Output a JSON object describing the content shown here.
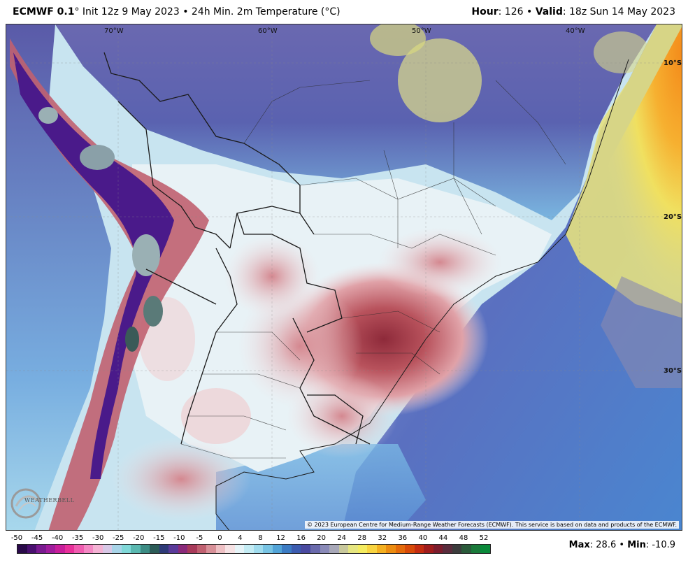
{
  "header": {
    "model": "ECMWF 0.1",
    "degree_mark": "°",
    "init": "Init 12z 9 May 2023",
    "sep": "•",
    "product": "24h Min. 2m Temperature (°C)",
    "hour_label": "Hour",
    "hour_value": ": 126",
    "valid_label": "Valid",
    "valid_value": ": 18z Sun 14 May 2023"
  },
  "map": {
    "lon_labels": [
      "70°W",
      "60°W",
      "50°W",
      "40°W"
    ],
    "lat_labels": [
      "10°S",
      "20°S",
      "30°S"
    ],
    "attribution": "© 2023 European Centre for Medium-Range Weather Forecasts (ECMWF). This service is based on data and products of the ECMWF.",
    "logo_text": "WEATHERBELL"
  },
  "colorbar": {
    "ticks": [
      "-50",
      "-45",
      "-40",
      "-35",
      "-30",
      "-25",
      "-20",
      "-15",
      "-10",
      "-5",
      "0",
      "4",
      "8",
      "12",
      "16",
      "20",
      "24",
      "28",
      "32",
      "36",
      "40",
      "44",
      "48",
      "52"
    ],
    "colors": [
      "#2a0a4a",
      "#4a1070",
      "#7a1a90",
      "#a01c9c",
      "#c81e9a",
      "#e8309a",
      "#f05cb0",
      "#f488c4",
      "#f4b2d4",
      "#d8c8e6",
      "#a8d4e8",
      "#80d8d8",
      "#5ab8b0",
      "#3c8c84",
      "#2c5c58",
      "#2e3a78",
      "#5a3a9a",
      "#8a2a7a",
      "#a83a5a",
      "#c06070",
      "#d89098",
      "#eec0c4",
      "#f6e2e4",
      "#e6f4f8",
      "#c4ecf4",
      "#a0dcee",
      "#78c4e4",
      "#52a4d8",
      "#3c7cc4",
      "#3c5cb0",
      "#4a4aa0",
      "#6a6aac",
      "#8a8ab8",
      "#a8a8b8",
      "#c8c89c",
      "#e6e680",
      "#f4ec60",
      "#f8d440",
      "#f4b020",
      "#ec8c10",
      "#e46a0a",
      "#d84a08",
      "#c42c10",
      "#a01c1c",
      "#7c1c2c",
      "#5a2c3c",
      "#3c3c3c",
      "#2a5a3a",
      "#1a7a3a",
      "#0a8a3a"
    ]
  },
  "stats": {
    "max_label": "Max",
    "max_value": ": 28.6",
    "sep": "•",
    "min_label": "Min",
    "min_value": ": -10.9"
  }
}
